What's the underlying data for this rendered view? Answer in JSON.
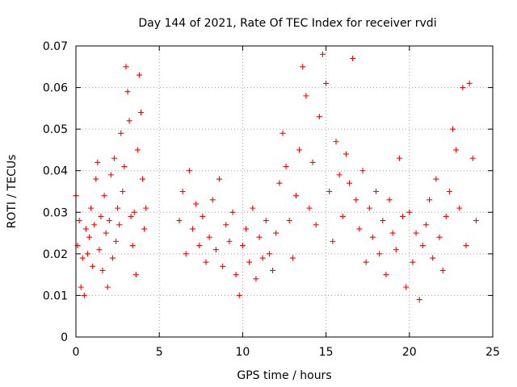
{
  "chart_data": {
    "type": "scatter",
    "title": "Day 144 of 2021, Rate Of TEC Index for receiver rvdi",
    "xlabel": "GPS time / hours",
    "ylabel": "ROTI / TECUs",
    "xlim": [
      0,
      25
    ],
    "ylim": [
      0,
      0.07
    ],
    "x_ticks": [
      0,
      5,
      10,
      15,
      20,
      25
    ],
    "x_tick_labels": [
      "0",
      "5",
      "10",
      "15",
      "20",
      "25"
    ],
    "y_ticks": [
      0,
      0.01,
      0.02,
      0.03,
      0.04,
      0.05,
      0.06,
      0.07
    ],
    "y_tick_labels": [
      "0",
      "0.01",
      "0.02",
      "0.03",
      "0.04",
      "0.05",
      "0.06",
      "0.07"
    ],
    "grid": true,
    "marker": "plus",
    "color": "#ff0000",
    "series": [
      {
        "points": [
          [
            0.0,
            0.034
          ],
          [
            0.1,
            0.022
          ],
          [
            0.2,
            0.028
          ],
          [
            0.3,
            0.012
          ],
          [
            0.4,
            0.019
          ],
          [
            0.5,
            0.01
          ],
          [
            0.6,
            0.026
          ],
          [
            0.7,
            0.02
          ],
          [
            0.8,
            0.024
          ],
          [
            0.9,
            0.031
          ],
          [
            1.0,
            0.017
          ],
          [
            1.1,
            0.027
          ],
          [
            1.2,
            0.038
          ],
          [
            1.3,
            0.042
          ],
          [
            1.4,
            0.021
          ],
          [
            1.5,
            0.029
          ],
          [
            1.6,
            0.016
          ],
          [
            1.7,
            0.034
          ],
          [
            1.8,
            0.025
          ],
          [
            1.9,
            0.012
          ],
          [
            2.0,
            0.028
          ],
          [
            2.1,
            0.039
          ],
          [
            2.2,
            0.019
          ],
          [
            2.3,
            0.043
          ],
          [
            2.4,
            0.023
          ],
          [
            2.5,
            0.031
          ],
          [
            2.6,
            0.027
          ],
          [
            2.7,
            0.049
          ],
          [
            2.8,
            0.035
          ],
          [
            2.9,
            0.041
          ],
          [
            3.0,
            0.065
          ],
          [
            3.1,
            0.059
          ],
          [
            3.2,
            0.052
          ],
          [
            3.3,
            0.029
          ],
          [
            3.4,
            0.022
          ],
          [
            3.5,
            0.03
          ],
          [
            3.6,
            0.015
          ],
          [
            3.7,
            0.045
          ],
          [
            3.8,
            0.063
          ],
          [
            3.9,
            0.054
          ],
          [
            4.0,
            0.038
          ],
          [
            4.1,
            0.026
          ],
          [
            4.2,
            0.031
          ],
          [
            6.2,
            0.028
          ],
          [
            6.4,
            0.035
          ],
          [
            6.6,
            0.02
          ],
          [
            6.8,
            0.04
          ],
          [
            7.0,
            0.026
          ],
          [
            7.2,
            0.032
          ],
          [
            7.4,
            0.022
          ],
          [
            7.6,
            0.029
          ],
          [
            7.8,
            0.018
          ],
          [
            8.0,
            0.024
          ],
          [
            8.2,
            0.033
          ],
          [
            8.4,
            0.021
          ],
          [
            8.6,
            0.038
          ],
          [
            8.8,
            0.017
          ],
          [
            9.0,
            0.027
          ],
          [
            9.2,
            0.023
          ],
          [
            9.4,
            0.03
          ],
          [
            9.6,
            0.015
          ],
          [
            9.8,
            0.01
          ],
          [
            10.0,
            0.022
          ],
          [
            10.2,
            0.026
          ],
          [
            10.4,
            0.018
          ],
          [
            10.6,
            0.031
          ],
          [
            10.8,
            0.014
          ],
          [
            11.0,
            0.024
          ],
          [
            11.2,
            0.019
          ],
          [
            11.4,
            0.028
          ],
          [
            11.6,
            0.02
          ],
          [
            11.8,
            0.016
          ],
          [
            12.0,
            0.025
          ],
          [
            12.2,
            0.037
          ],
          [
            12.4,
            0.049
          ],
          [
            12.6,
            0.041
          ],
          [
            12.8,
            0.028
          ],
          [
            13.0,
            0.019
          ],
          [
            13.2,
            0.034
          ],
          [
            13.4,
            0.045
          ],
          [
            13.6,
            0.065
          ],
          [
            13.8,
            0.058
          ],
          [
            14.0,
            0.031
          ],
          [
            14.2,
            0.042
          ],
          [
            14.4,
            0.027
          ],
          [
            14.6,
            0.053
          ],
          [
            14.8,
            0.068
          ],
          [
            15.0,
            0.061
          ],
          [
            15.2,
            0.035
          ],
          [
            15.4,
            0.023
          ],
          [
            15.6,
            0.047
          ],
          [
            15.8,
            0.039
          ],
          [
            16.0,
            0.029
          ],
          [
            16.2,
            0.044
          ],
          [
            16.4,
            0.037
          ],
          [
            16.6,
            0.067
          ],
          [
            16.8,
            0.033
          ],
          [
            17.0,
            0.026
          ],
          [
            17.2,
            0.04
          ],
          [
            17.4,
            0.018
          ],
          [
            17.6,
            0.031
          ],
          [
            17.8,
            0.024
          ],
          [
            18.0,
            0.035
          ],
          [
            18.2,
            0.02
          ],
          [
            18.4,
            0.028
          ],
          [
            18.6,
            0.015
          ],
          [
            18.8,
            0.033
          ],
          [
            19.0,
            0.025
          ],
          [
            19.2,
            0.021
          ],
          [
            19.4,
            0.043
          ],
          [
            19.6,
            0.029
          ],
          [
            19.8,
            0.012
          ],
          [
            20.0,
            0.03
          ],
          [
            20.2,
            0.018
          ],
          [
            20.4,
            0.025
          ],
          [
            20.6,
            0.009
          ],
          [
            20.8,
            0.022
          ],
          [
            21.0,
            0.027
          ],
          [
            21.2,
            0.033
          ],
          [
            21.4,
            0.019
          ],
          [
            21.6,
            0.038
          ],
          [
            21.8,
            0.024
          ],
          [
            22.0,
            0.016
          ],
          [
            22.2,
            0.029
          ],
          [
            22.4,
            0.035
          ],
          [
            22.6,
            0.05
          ],
          [
            22.8,
            0.045
          ],
          [
            23.0,
            0.031
          ],
          [
            23.2,
            0.06
          ],
          [
            23.4,
            0.022
          ],
          [
            23.6,
            0.061
          ],
          [
            23.8,
            0.043
          ],
          [
            24.0,
            0.028
          ]
        ]
      }
    ]
  }
}
